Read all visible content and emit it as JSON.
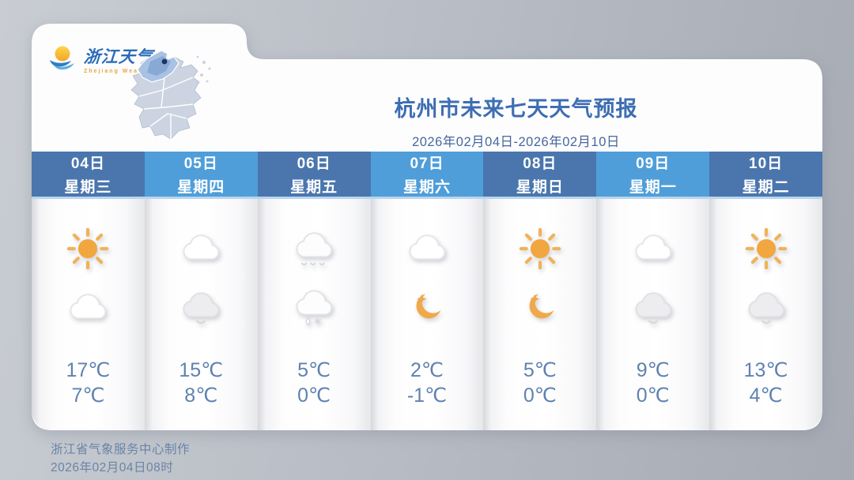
{
  "logo": {
    "title": "浙江天气",
    "subtitle": "Zhejiang  Weather"
  },
  "header": {
    "title": "杭州市未来七天天气预报",
    "date_range": "2026年02月04日-2026年02月10日"
  },
  "forecast": {
    "days": [
      {
        "date": "04日",
        "weekday": "星期三",
        "day_icon": "sunny",
        "night_icon": "cloudy",
        "high": "17℃",
        "low": "7℃",
        "header_style": "dark"
      },
      {
        "date": "05日",
        "weekday": "星期四",
        "day_icon": "cloudy",
        "night_icon": "overcast",
        "high": "15℃",
        "low": "8℃",
        "header_style": "light"
      },
      {
        "date": "06日",
        "weekday": "星期五",
        "day_icon": "light-rain",
        "night_icon": "rain-snow",
        "high": "5℃",
        "low": "0℃",
        "header_style": "dark"
      },
      {
        "date": "07日",
        "weekday": "星期六",
        "day_icon": "cloudy",
        "night_icon": "clear-night",
        "high": "2℃",
        "low": "-1℃",
        "header_style": "light"
      },
      {
        "date": "08日",
        "weekday": "星期日",
        "day_icon": "sunny",
        "night_icon": "clear-night",
        "high": "5℃",
        "low": "0℃",
        "header_style": "dark"
      },
      {
        "date": "09日",
        "weekday": "星期一",
        "day_icon": "cloudy",
        "night_icon": "overcast",
        "high": "9℃",
        "low": "0℃",
        "header_style": "light"
      },
      {
        "date": "10日",
        "weekday": "星期二",
        "day_icon": "sunny",
        "night_icon": "overcast",
        "high": "13℃",
        "low": "4℃",
        "header_style": "dark"
      }
    ]
  },
  "footer": {
    "producer": "浙江省气象服务中心制作",
    "issued": "2026年02月04日08时"
  },
  "colors": {
    "header_dark_blue": "#4a76ad",
    "header_light_blue": "#4f9ed9",
    "title_blue": "#3e6db3",
    "temperature_blue": "#5f82b0",
    "sun_orange": "#f2a63f",
    "moon_orange": "#efa94a",
    "background_gray": "#b9bec6",
    "card_white": "#fdfdfe"
  }
}
